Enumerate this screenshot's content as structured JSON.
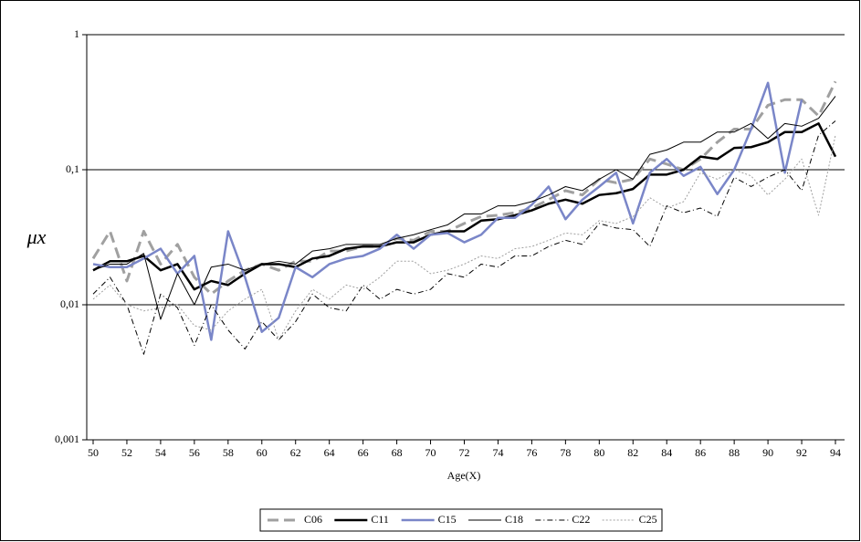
{
  "chart_data": {
    "type": "line",
    "xlabel": "Age(X)",
    "ylabel": "μx",
    "log_y": true,
    "grid": true,
    "legend": "bottom",
    "x": [
      50,
      51,
      52,
      53,
      54,
      55,
      56,
      57,
      58,
      59,
      60,
      61,
      62,
      63,
      64,
      65,
      66,
      67,
      68,
      69,
      70,
      71,
      72,
      73,
      74,
      75,
      76,
      77,
      78,
      79,
      80,
      81,
      82,
      83,
      84,
      85,
      86,
      87,
      88,
      89,
      90,
      91,
      92,
      93,
      94
    ],
    "xlim": [
      50,
      94
    ],
    "xticks": [
      50,
      52,
      54,
      56,
      58,
      60,
      62,
      64,
      66,
      68,
      70,
      72,
      74,
      76,
      78,
      80,
      82,
      84,
      86,
      88,
      90,
      92,
      94
    ],
    "ylim": [
      0.001,
      1
    ],
    "yticks": [
      {
        "value": 0.001,
        "label": "0,001"
      },
      {
        "value": 0.01,
        "label": "0,01"
      },
      {
        "value": 0.1,
        "label": "0,1"
      },
      1
    ],
    "series": [
      {
        "name": "C06",
        "color": "#a0a0a0",
        "width": 3,
        "dash": "12,6",
        "values": [
          0.022,
          0.035,
          0.015,
          0.035,
          0.02,
          0.028,
          0.016,
          0.012,
          0.015,
          0.018,
          0.02,
          0.018,
          0.021,
          0.021,
          0.025,
          0.025,
          0.027,
          0.027,
          0.031,
          0.03,
          0.035,
          0.035,
          0.04,
          0.045,
          0.046,
          0.048,
          0.052,
          0.06,
          0.07,
          0.065,
          0.085,
          0.08,
          0.085,
          0.12,
          0.11,
          0.1,
          0.12,
          0.16,
          0.2,
          0.2,
          0.3,
          0.33,
          0.33,
          0.25,
          0.45
        ]
      },
      {
        "name": "C11",
        "color": "#000000",
        "width": 2.5,
        "dash": "none",
        "values": [
          0.018,
          0.021,
          0.021,
          0.023,
          0.018,
          0.02,
          0.013,
          0.015,
          0.014,
          0.017,
          0.02,
          0.02,
          0.019,
          0.022,
          0.023,
          0.026,
          0.027,
          0.027,
          0.029,
          0.029,
          0.033,
          0.035,
          0.035,
          0.042,
          0.043,
          0.046,
          0.05,
          0.056,
          0.06,
          0.056,
          0.065,
          0.067,
          0.072,
          0.092,
          0.092,
          0.1,
          0.125,
          0.12,
          0.145,
          0.147,
          0.16,
          0.19,
          0.19,
          0.22,
          0.125
        ]
      },
      {
        "name": "C15",
        "color": "#7a86c8",
        "width": 2.5,
        "dash": "none",
        "values": [
          0.02,
          0.019,
          0.019,
          0.022,
          0.026,
          0.017,
          0.023,
          0.0055,
          0.035,
          0.016,
          0.0063,
          0.008,
          0.019,
          0.016,
          0.02,
          0.022,
          0.023,
          0.026,
          0.033,
          0.026,
          0.033,
          0.034,
          0.029,
          0.033,
          0.044,
          0.044,
          0.055,
          0.075,
          0.043,
          0.06,
          0.075,
          0.095,
          0.04,
          0.095,
          0.12,
          0.09,
          0.105,
          0.066,
          0.1,
          0.2,
          0.44,
          0.095,
          0.33,
          null,
          null
        ]
      },
      {
        "name": "C18",
        "color": "#000000",
        "width": 1,
        "dash": "none",
        "values": [
          0.018,
          0.02,
          0.02,
          0.024,
          0.0078,
          0.017,
          0.01,
          0.019,
          0.02,
          0.018,
          0.02,
          0.021,
          0.02,
          0.025,
          0.026,
          0.028,
          0.028,
          0.028,
          0.031,
          0.033,
          0.036,
          0.039,
          0.047,
          0.047,
          0.054,
          0.054,
          0.058,
          0.065,
          0.075,
          0.07,
          0.085,
          0.1,
          0.085,
          0.13,
          0.14,
          0.16,
          0.16,
          0.19,
          0.19,
          0.22,
          0.17,
          0.22,
          0.21,
          0.24,
          0.35
        ]
      },
      {
        "name": "C22",
        "color": "#000000",
        "width": 1,
        "dash": "6,3,1,3",
        "values": [
          0.012,
          0.016,
          0.01,
          0.0043,
          0.012,
          0.0095,
          0.005,
          0.01,
          0.0065,
          0.0047,
          0.0075,
          0.0055,
          0.0075,
          0.012,
          0.0095,
          0.009,
          0.014,
          0.011,
          0.013,
          0.012,
          0.013,
          0.017,
          0.016,
          0.02,
          0.019,
          0.023,
          0.023,
          0.027,
          0.03,
          0.028,
          0.04,
          0.037,
          0.036,
          0.027,
          0.054,
          0.048,
          0.052,
          0.045,
          0.088,
          0.075,
          0.088,
          0.1,
          0.07,
          0.18,
          0.23
        ]
      },
      {
        "name": "C25",
        "color": "#a0a0a0",
        "width": 1,
        "dash": "2,2",
        "values": [
          0.011,
          0.014,
          0.01,
          0.009,
          0.0095,
          0.01,
          0.007,
          0.0065,
          0.009,
          0.011,
          0.013,
          0.0055,
          0.009,
          0.013,
          0.011,
          0.014,
          0.013,
          0.016,
          0.021,
          0.021,
          0.017,
          0.018,
          0.02,
          0.023,
          0.022,
          0.026,
          0.027,
          0.03,
          0.034,
          0.033,
          0.042,
          0.04,
          0.045,
          0.062,
          0.052,
          0.058,
          0.095,
          0.085,
          0.1,
          0.09,
          0.065,
          0.085,
          0.12,
          0.046,
          0.18
        ]
      }
    ]
  }
}
